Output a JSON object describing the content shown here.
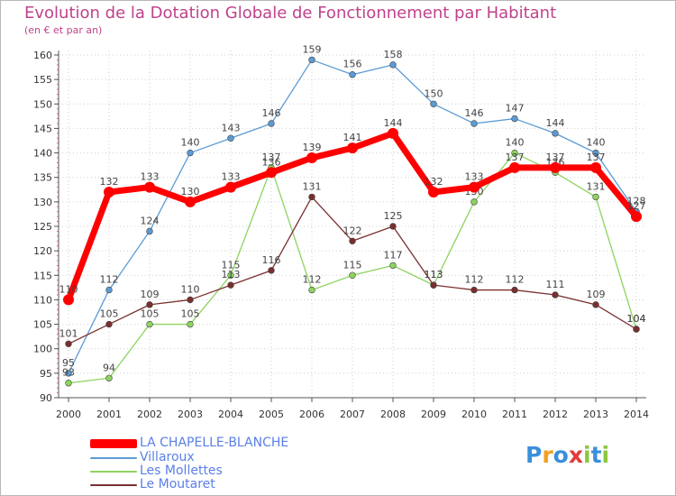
{
  "chart_data": {
    "type": "line",
    "title": "Evolution de la Dotation Globale de Fonctionnement par Habitant",
    "subtitle": "(en € et par an)",
    "xlabel": "",
    "ylabel": "",
    "ylim": [
      90,
      160
    ],
    "yticks": [
      90,
      95,
      100,
      105,
      110,
      115,
      120,
      125,
      130,
      135,
      140,
      145,
      150,
      155,
      160
    ],
    "x": [
      "2000",
      "2001",
      "2002",
      "2003",
      "2004",
      "2005",
      "2006",
      "2007",
      "2008",
      "2009",
      "2010",
      "2011",
      "2012",
      "2013",
      "2014"
    ],
    "grid": "vertical and horizontal dotted",
    "legend_position": "bottom-left",
    "series": [
      {
        "name": "Villaroux",
        "color": "#5b9bd5",
        "values": [
          95,
          112,
          124,
          140,
          143,
          146,
          159,
          156,
          158,
          150,
          146,
          147,
          144,
          140,
          128
        ]
      },
      {
        "name": "Les Mollettes",
        "color": "#8dd35f",
        "values": [
          93,
          94,
          105,
          105,
          115,
          137,
          112,
          115,
          117,
          113,
          130,
          140,
          136,
          131,
          104
        ]
      },
      {
        "name": "Le Moutaret",
        "color": "#7a2f2f",
        "values": [
          101,
          105,
          109,
          110,
          113,
          116,
          131,
          122,
          125,
          113,
          112,
          112,
          111,
          109,
          104
        ]
      },
      {
        "name": "LA CHAPELLE-BLANCHE",
        "color": "#ff0000",
        "values": [
          110,
          132,
          133,
          130,
          133,
          136,
          139,
          141,
          144,
          132,
          133,
          137,
          137,
          137,
          127
        ]
      }
    ]
  },
  "legend": {
    "items": [
      {
        "label": "LA CHAPELLE-BLANCHE",
        "color": "#ff0000",
        "text_color": "#5b7fe6"
      },
      {
        "label": "Villaroux",
        "color": "#5b9bd5",
        "text_color": "#5b7fe6"
      },
      {
        "label": "Les Mollettes",
        "color": "#8dd35f",
        "text_color": "#5b7fe6"
      },
      {
        "label": "Le Moutaret",
        "color": "#7a2f2f",
        "text_color": "#5b7fe6"
      }
    ]
  },
  "logo": {
    "letters": [
      "P",
      "r",
      "o",
      "x",
      "i",
      "t",
      "i"
    ],
    "colors": [
      "#3a8fd9",
      "#f0a020",
      "#3a8fd9",
      "#e33b3b",
      "#8cc63f",
      "#3a8fd9",
      "#8cc63f"
    ]
  }
}
